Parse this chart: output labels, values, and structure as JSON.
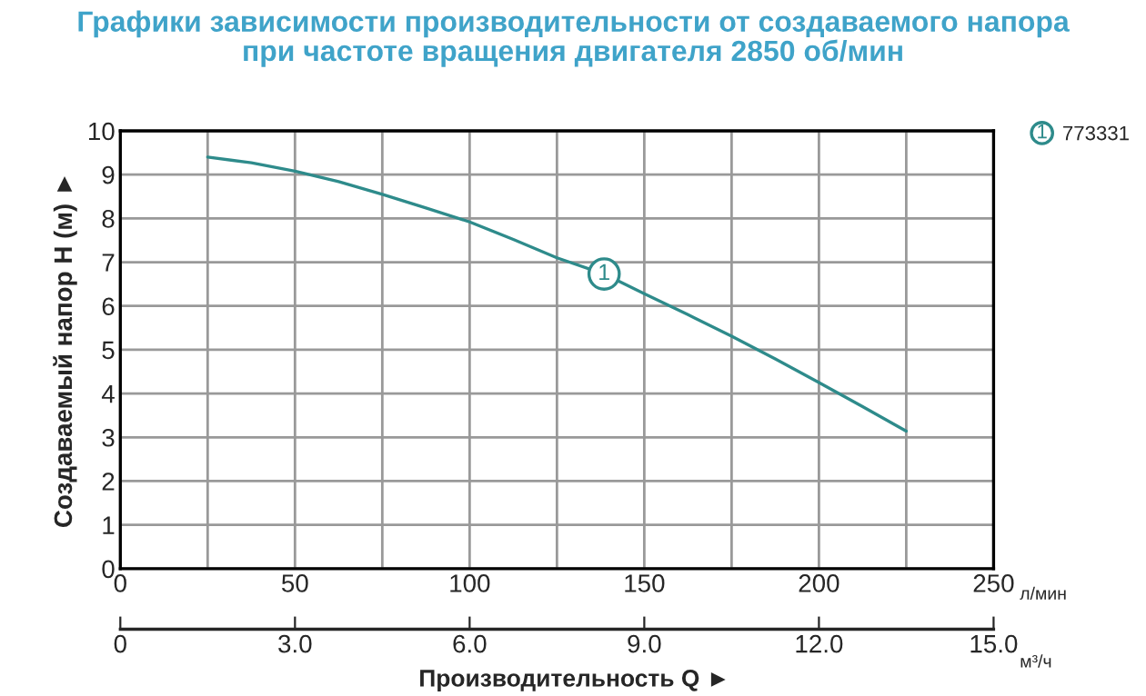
{
  "chart_data": {
    "type": "line",
    "title": "Графики зависимости производительности от создаваемого напора\nпри частоте вращения двигателя 2850 об/мин",
    "xlabel": "л/мин",
    "x2label": "м³/ч",
    "ylabel": "Создаваемый напор Н (м) ►",
    "series": [
      {
        "name": "773331",
        "color": "#2e8b8b",
        "x": [
          25,
          37.5,
          50,
          62.5,
          75,
          87.5,
          100,
          112.5,
          125,
          138.5,
          150,
          162.5,
          175,
          187.5,
          200,
          212.5,
          225
        ],
        "values": [
          9.4,
          9.27,
          9.08,
          8.84,
          8.55,
          8.24,
          7.92,
          7.52,
          7.1,
          6.73,
          6.28,
          5.8,
          5.31,
          4.79,
          4.25,
          3.7,
          3.14
        ]
      }
    ],
    "xlim": [
      0,
      250
    ],
    "xticks": [
      0,
      {
        "value": 25,
        "label": null
      },
      50,
      {
        "value": 75,
        "label": null
      },
      100,
      {
        "value": 125,
        "label": null
      },
      150,
      {
        "value": 175,
        "label": null
      },
      200,
      {
        "value": 225,
        "label": null
      },
      250
    ],
    "x2lim": [
      0,
      15
    ],
    "x2ticks": [
      0,
      {
        "value": 3,
        "label": "3.0"
      },
      {
        "value": 6,
        "label": "6.0"
      },
      {
        "value": 9,
        "label": "9.0"
      },
      {
        "value": 12,
        "label": "12.0"
      },
      {
        "value": 15,
        "label": "15.0"
      }
    ],
    "ylim": [
      0,
      10
    ],
    "yticks": [
      0,
      1,
      2,
      3,
      4,
      5,
      6,
      7,
      8,
      9,
      10
    ],
    "annotations": [
      {
        "text": "1",
        "x": 138.5,
        "y": 6.73
      },
      "Производительность Q ►"
    ],
    "grid": true,
    "legend": "top right",
    "line_style": "solid",
    "marker": "none"
  }
}
